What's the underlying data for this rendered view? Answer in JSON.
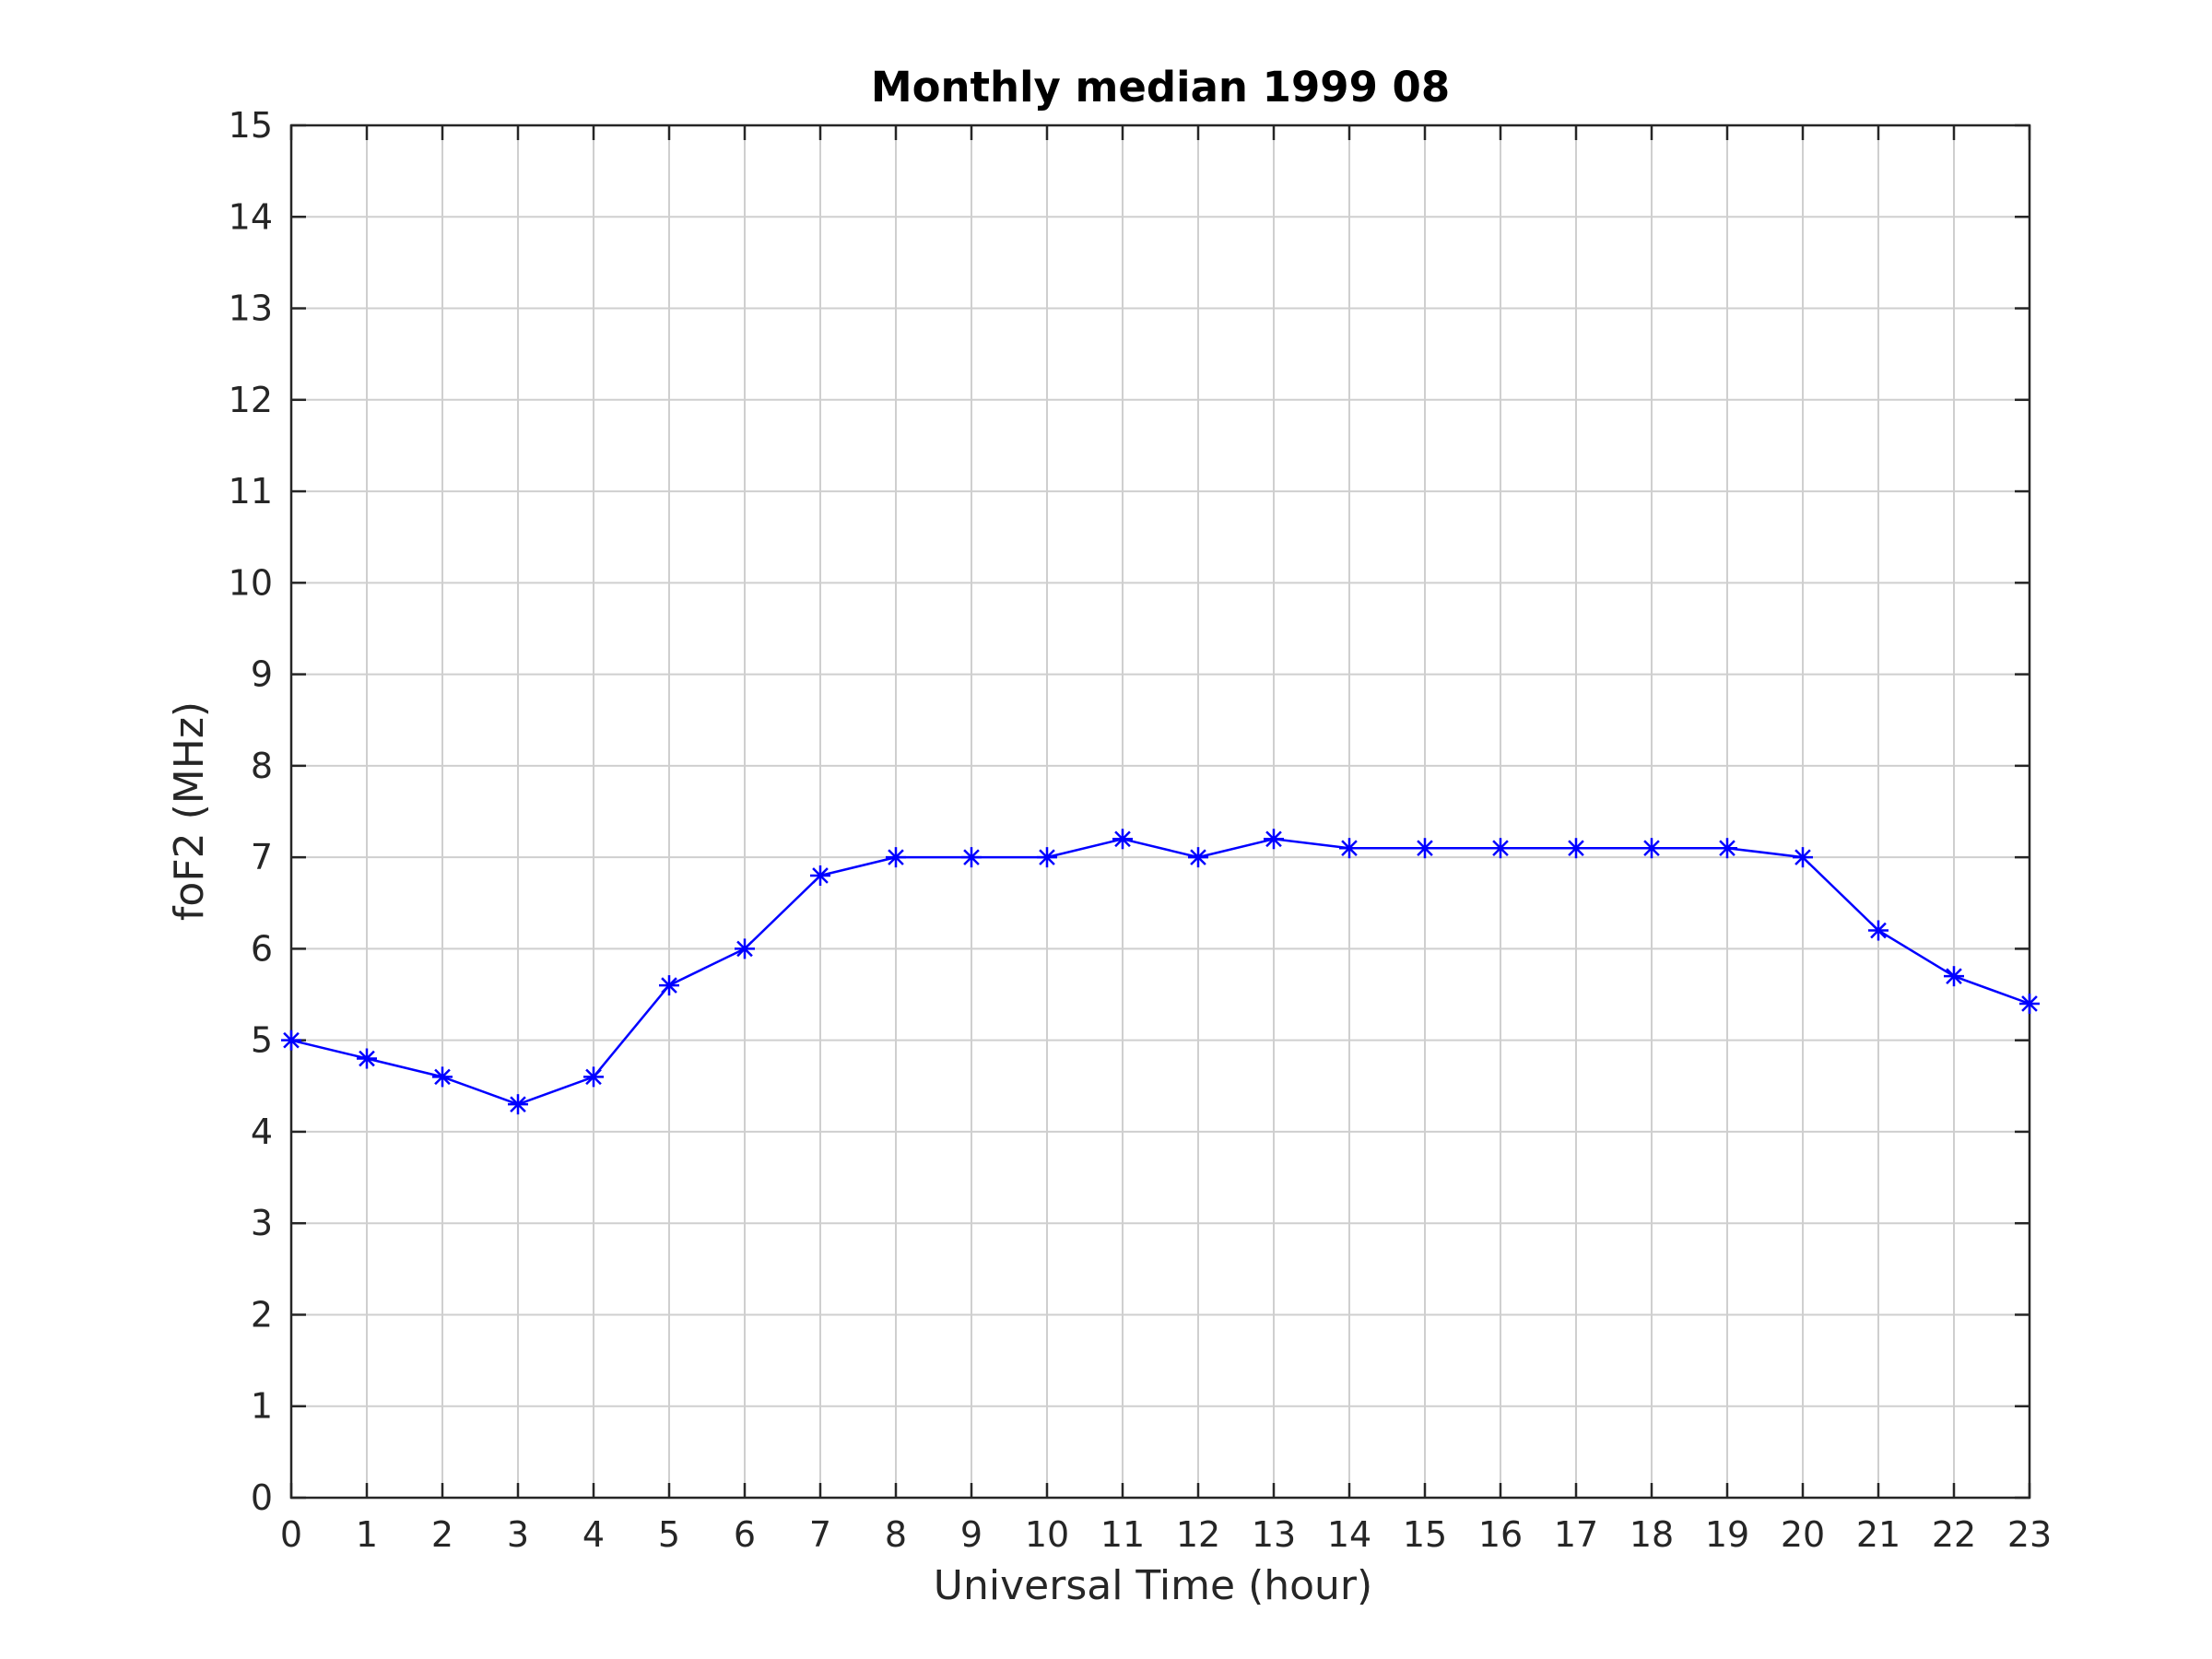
{
  "chart_data": {
    "type": "line",
    "title": "Monthly median 1999 08",
    "xlabel": "Universal Time (hour)",
    "ylabel": "foF2 (MHz)",
    "xlim": [
      0,
      23
    ],
    "ylim": [
      0,
      15
    ],
    "x_ticks": [
      "0",
      "1",
      "2",
      "3",
      "4",
      "5",
      "6",
      "7",
      "8",
      "9",
      "10",
      "11",
      "12",
      "13",
      "14",
      "15",
      "16",
      "17",
      "18",
      "19",
      "20",
      "21",
      "22",
      "23"
    ],
    "y_ticks": [
      "0",
      "1",
      "2",
      "3",
      "4",
      "5",
      "6",
      "7",
      "8",
      "9",
      "10",
      "11",
      "12",
      "13",
      "14",
      "15"
    ],
    "grid": true,
    "series": [
      {
        "color": "#0000ff",
        "marker": "asterisk",
        "x": [
          0,
          1,
          2,
          3,
          4,
          5,
          6,
          7,
          8,
          9,
          10,
          11,
          12,
          13,
          14,
          15,
          16,
          17,
          18,
          19,
          20,
          21,
          22,
          23
        ],
        "y": [
          5.0,
          4.8,
          4.6,
          4.3,
          4.6,
          5.6,
          6.0,
          6.8,
          7.0,
          7.0,
          7.0,
          7.2,
          7.0,
          7.2,
          7.1,
          7.1,
          7.1,
          7.1,
          7.1,
          7.1,
          7.0,
          6.2,
          5.7,
          5.4
        ]
      }
    ],
    "colors": {
      "axes": "#262626",
      "grid": "#cfcfcf",
      "series": "#0000ff"
    }
  }
}
